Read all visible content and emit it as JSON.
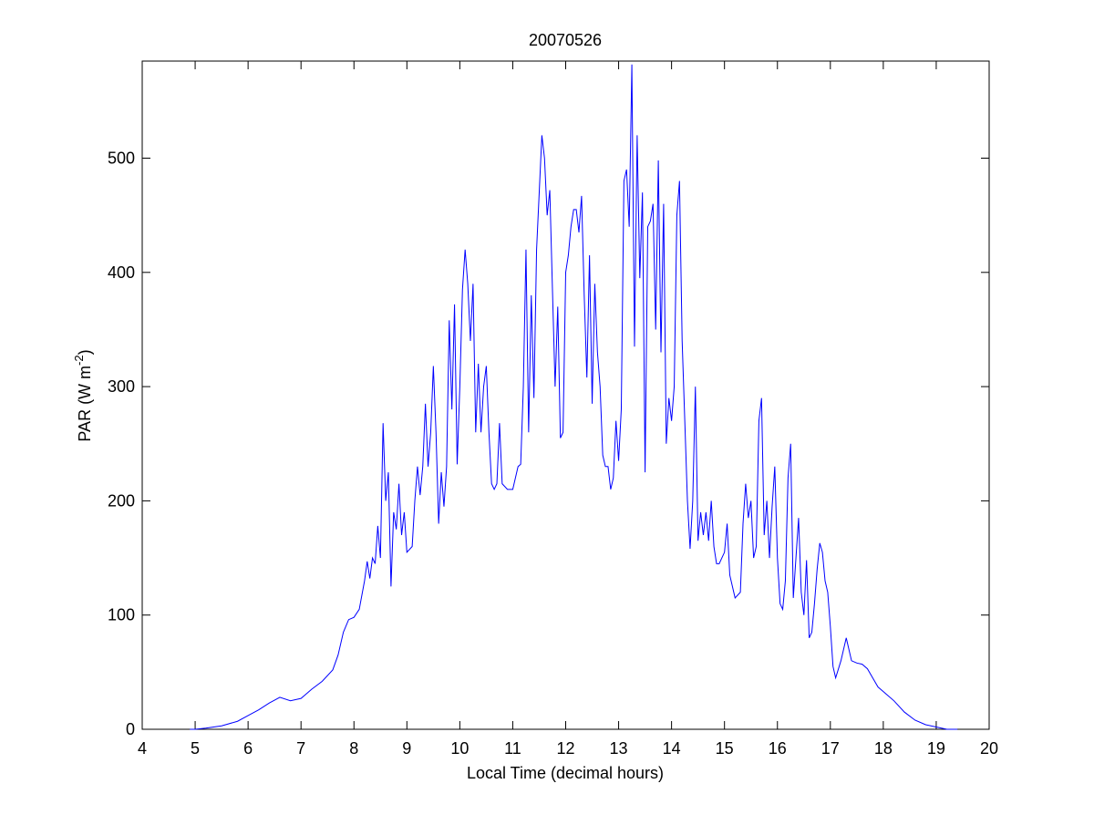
{
  "chart_data": {
    "type": "line",
    "title": "20070526",
    "xlabel": "Local Time (decimal hours)",
    "ylabel": {
      "text": "PAR (W m",
      "superscript": "-2",
      "suffix": ")"
    },
    "xlim": [
      4,
      20
    ],
    "xticks": [
      4,
      5,
      6,
      7,
      8,
      9,
      10,
      11,
      12,
      13,
      14,
      15,
      16,
      17,
      18,
      19,
      20
    ],
    "ylim": [
      0,
      585
    ],
    "yticks": [
      0,
      100,
      200,
      300,
      400,
      500
    ],
    "color": "#0000ff",
    "x": [
      4.9,
      5.0,
      5.2,
      5.5,
      5.8,
      6.0,
      6.2,
      6.4,
      6.6,
      6.8,
      7.0,
      7.2,
      7.4,
      7.6,
      7.7,
      7.8,
      7.9,
      8.0,
      8.1,
      8.2,
      8.25,
      8.3,
      8.35,
      8.4,
      8.45,
      8.5,
      8.55,
      8.6,
      8.65,
      8.7,
      8.75,
      8.8,
      8.85,
      8.9,
      8.95,
      9.0,
      9.1,
      9.15,
      9.2,
      9.25,
      9.3,
      9.35,
      9.4,
      9.45,
      9.5,
      9.55,
      9.6,
      9.65,
      9.7,
      9.75,
      9.8,
      9.85,
      9.9,
      9.95,
      10.0,
      10.05,
      10.1,
      10.15,
      10.2,
      10.25,
      10.3,
      10.35,
      10.4,
      10.45,
      10.5,
      10.55,
      10.6,
      10.65,
      10.7,
      10.75,
      10.8,
      10.9,
      11.0,
      11.1,
      11.15,
      11.2,
      11.25,
      11.3,
      11.35,
      11.4,
      11.45,
      11.5,
      11.55,
      11.6,
      11.65,
      11.7,
      11.75,
      11.8,
      11.85,
      11.9,
      11.95,
      12.0,
      12.05,
      12.1,
      12.15,
      12.2,
      12.25,
      12.3,
      12.35,
      12.4,
      12.45,
      12.5,
      12.55,
      12.6,
      12.65,
      12.7,
      12.75,
      12.8,
      12.85,
      12.9,
      12.95,
      13.0,
      13.05,
      13.1,
      13.15,
      13.2,
      13.25,
      13.3,
      13.35,
      13.4,
      13.45,
      13.5,
      13.55,
      13.6,
      13.65,
      13.7,
      13.75,
      13.8,
      13.85,
      13.9,
      13.95,
      14.0,
      14.05,
      14.1,
      14.15,
      14.2,
      14.25,
      14.3,
      14.35,
      14.4,
      14.45,
      14.5,
      14.55,
      14.6,
      14.65,
      14.7,
      14.75,
      14.8,
      14.85,
      14.9,
      15.0,
      15.05,
      15.1,
      15.2,
      15.3,
      15.35,
      15.4,
      15.45,
      15.5,
      15.55,
      15.6,
      15.65,
      15.7,
      15.75,
      15.8,
      15.85,
      15.9,
      15.95,
      16.0,
      16.05,
      16.1,
      16.15,
      16.2,
      16.25,
      16.3,
      16.35,
      16.4,
      16.45,
      16.5,
      16.55,
      16.6,
      16.65,
      16.7,
      16.75,
      16.8,
      16.85,
      16.9,
      16.95,
      17.0,
      17.05,
      17.1,
      17.2,
      17.3,
      17.35,
      17.4,
      17.5,
      17.6,
      17.7,
      17.8,
      17.9,
      18.0,
      18.2,
      18.4,
      18.6,
      18.8,
      19.0,
      19.2,
      19.4
    ],
    "values": [
      0,
      0,
      1,
      3,
      7,
      12,
      17,
      23,
      28,
      25,
      27,
      35,
      42,
      52,
      65,
      85,
      96,
      98,
      105,
      130,
      147,
      132,
      150,
      145,
      178,
      150,
      268,
      200,
      225,
      125,
      190,
      175,
      215,
      170,
      190,
      155,
      160,
      200,
      230,
      205,
      230,
      285,
      230,
      260,
      318,
      260,
      180,
      225,
      195,
      230,
      358,
      280,
      372,
      232,
      300,
      385,
      420,
      390,
      340,
      390,
      260,
      320,
      260,
      300,
      318,
      260,
      215,
      210,
      215,
      268,
      215,
      210,
      210,
      230,
      232,
      300,
      420,
      260,
      380,
      290,
      420,
      470,
      520,
      500,
      450,
      472,
      385,
      300,
      370,
      255,
      260,
      400,
      415,
      440,
      455,
      455,
      435,
      467,
      380,
      308,
      415,
      285,
      390,
      330,
      300,
      240,
      230,
      230,
      210,
      220,
      270,
      235,
      280,
      480,
      490,
      440,
      582,
      335,
      520,
      395,
      470,
      225,
      440,
      445,
      460,
      350,
      498,
      330,
      460,
      250,
      290,
      270,
      300,
      450,
      480,
      340,
      270,
      200,
      158,
      200,
      300,
      165,
      190,
      170,
      190,
      165,
      200,
      160,
      145,
      145,
      155,
      180,
      135,
      115,
      120,
      180,
      215,
      185,
      200,
      150,
      160,
      270,
      290,
      170,
      200,
      150,
      195,
      230,
      150,
      110,
      105,
      130,
      220,
      250,
      115,
      150,
      185,
      120,
      100,
      148,
      80,
      85,
      110,
      140,
      163,
      155,
      130,
      120,
      90,
      55,
      45,
      60,
      80,
      70,
      60,
      58,
      57,
      53,
      45,
      37,
      33,
      25,
      15,
      8,
      4,
      2,
      0,
      0
    ]
  }
}
